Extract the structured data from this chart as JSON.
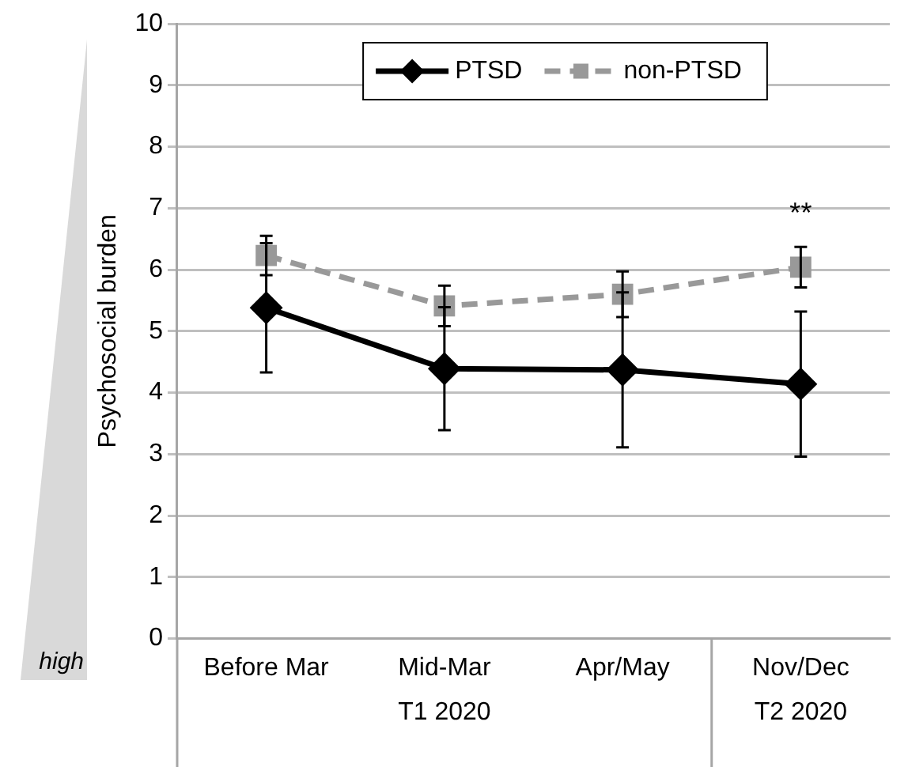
{
  "chart_data": {
    "type": "line",
    "ylabel": "Psychosocial burden",
    "categories": [
      "Before Mar",
      "Mid-Mar",
      "Apr/May",
      "Nov/Dec"
    ],
    "series": [
      {
        "name": "PTSD",
        "color": "#000000",
        "values": [
          5.38,
          4.39,
          4.37,
          4.14
        ],
        "errors": [
          1.05,
          1.0,
          1.26,
          1.18
        ],
        "marker": "diamond",
        "line_style": "solid"
      },
      {
        "name": "non-PTSD",
        "color": "#999999",
        "values": [
          6.23,
          5.41,
          5.6,
          6.04
        ],
        "errors": [
          0.32,
          0.33,
          0.37,
          0.33
        ],
        "marker": "square",
        "line_style": "dashed"
      }
    ],
    "ylim": [
      0,
      10
    ],
    "yticks": [
      0,
      1,
      2,
      3,
      4,
      5,
      6,
      7,
      8,
      9,
      10
    ],
    "grid": "y",
    "legend": "top",
    "annotations": [
      "**",
      "high",
      "T1 2020",
      "T2 2020"
    ]
  }
}
